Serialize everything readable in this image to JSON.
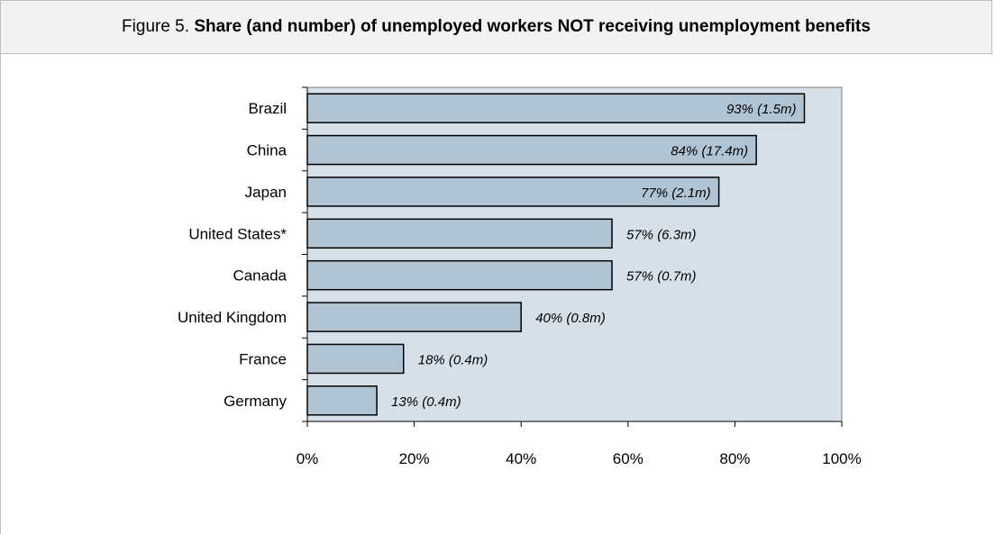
{
  "figure": {
    "title_prefix": "Figure 5. ",
    "title_main": "Share (and number) of unemployed workers NOT receiving unemployment benefits"
  },
  "colors": {
    "header_bg": "#f2f2f2",
    "plot_bg": "#d6e0e9",
    "bar_fill": "#b0c4d4",
    "bar_stroke": "#000000"
  },
  "chart_data": {
    "type": "bar",
    "orientation": "horizontal",
    "categories": [
      "Brazil",
      "China",
      "Japan",
      "United States*",
      "Canada",
      "United Kingdom",
      "France",
      "Germany"
    ],
    "values": [
      93,
      84,
      77,
      57,
      57,
      40,
      18,
      13
    ],
    "data_labels": [
      "93% (1.5m)",
      "84% (17.4m)",
      "77% (2.1m)",
      "57% (6.3m)",
      "57% (0.7m)",
      "40% (0.8m)",
      "18% (0.4m)",
      "13% (0.4m)"
    ],
    "x_ticks": [
      0,
      20,
      40,
      60,
      80,
      100
    ],
    "x_tick_labels": [
      "0%",
      "20%",
      "40%",
      "60%",
      "80%",
      "100%"
    ],
    "xlim": [
      0,
      100
    ],
    "xlabel": "",
    "ylabel": "",
    "grid": false,
    "legend": "none"
  }
}
